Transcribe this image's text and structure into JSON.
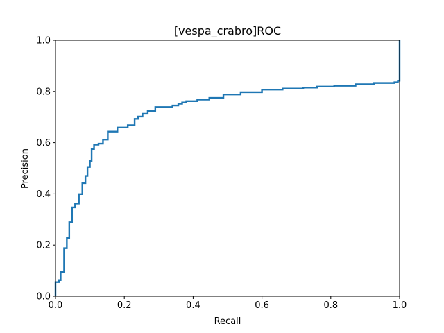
{
  "chart_data": {
    "type": "line",
    "title": "[vespa_crabro]ROC",
    "xlabel": "Recall",
    "ylabel": "Precision",
    "xlim": [
      0,
      1
    ],
    "ylim": [
      0,
      1
    ],
    "grid": false,
    "line_color": "#1f77b4",
    "x_ticks": [
      "0.0",
      "0.2",
      "0.4",
      "0.6",
      "0.8",
      "1.0"
    ],
    "y_ticks": [
      "0.0",
      "0.2",
      "0.4",
      "0.6",
      "0.8",
      "1.0"
    ],
    "series": [
      {
        "step": true,
        "x": [
          0.0,
          0.0,
          0.01,
          0.015,
          0.025,
          0.033,
          0.04,
          0.048,
          0.057,
          0.068,
          0.078,
          0.087,
          0.093,
          0.1,
          0.105,
          0.112,
          0.125,
          0.138,
          0.152,
          0.18,
          0.21,
          0.23,
          0.24,
          0.253,
          0.268,
          0.29,
          0.34,
          0.357,
          0.368,
          0.38,
          0.412,
          0.447,
          0.488,
          0.538,
          0.6,
          0.66,
          0.72,
          0.76,
          0.81,
          0.872,
          0.925,
          0.985,
          0.995,
          1.0
        ],
        "y": [
          0.0,
          0.055,
          0.063,
          0.095,
          0.188,
          0.227,
          0.289,
          0.347,
          0.362,
          0.399,
          0.442,
          0.47,
          0.505,
          0.528,
          0.575,
          0.592,
          0.596,
          0.612,
          0.643,
          0.659,
          0.668,
          0.693,
          0.702,
          0.713,
          0.723,
          0.739,
          0.745,
          0.752,
          0.757,
          0.762,
          0.768,
          0.775,
          0.788,
          0.797,
          0.807,
          0.811,
          0.815,
          0.819,
          0.822,
          0.828,
          0.833,
          0.836,
          0.842,
          1.0
        ]
      }
    ]
  }
}
